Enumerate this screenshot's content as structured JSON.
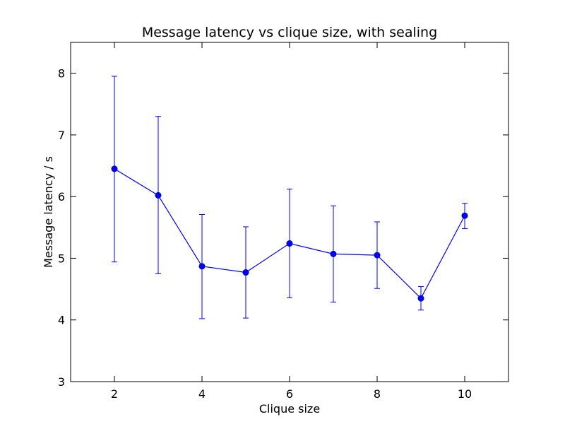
{
  "chart_data": {
    "type": "line",
    "title": "Message latency vs clique size, with sealing",
    "xlabel": "Clique size",
    "ylabel": "Message latency / s",
    "xlim": [
      1,
      11
    ],
    "ylim": [
      3,
      8.5
    ],
    "xticks": [
      2,
      4,
      6,
      8,
      10
    ],
    "yticks": [
      3,
      4,
      5,
      6,
      7,
      8
    ],
    "grid": false,
    "color": "#0000ff",
    "series": [
      {
        "x": [
          2,
          3,
          4,
          5,
          6,
          7,
          8,
          9,
          10
        ],
        "y": [
          6.45,
          6.02,
          4.87,
          4.77,
          5.24,
          5.07,
          5.05,
          4.35,
          5.69
        ],
        "err_low": [
          4.94,
          4.75,
          4.02,
          4.03,
          4.36,
          4.29,
          4.51,
          4.16,
          5.48
        ],
        "err_high": [
          7.95,
          7.3,
          5.71,
          5.51,
          6.12,
          5.85,
          5.59,
          4.54,
          5.89
        ]
      }
    ]
  }
}
